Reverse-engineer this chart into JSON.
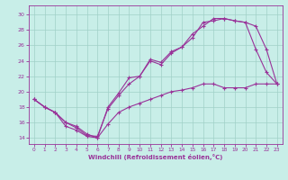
{
  "background_color": "#c8eee8",
  "grid_color": "#a0d0c8",
  "line_color": "#993399",
  "xlabel": "Windchill (Refroidissement éolien,°C)",
  "x_ticks": [
    0,
    1,
    2,
    3,
    4,
    5,
    6,
    7,
    8,
    9,
    10,
    11,
    12,
    13,
    14,
    15,
    16,
    17,
    18,
    19,
    20,
    21,
    22,
    23
  ],
  "y_ticks": [
    14,
    16,
    18,
    20,
    22,
    24,
    26,
    28,
    30
  ],
  "xlim": [
    -0.5,
    23.5
  ],
  "ylim": [
    13.2,
    31.2
  ],
  "line1_x": [
    0,
    1,
    2,
    3,
    4,
    5,
    6,
    7,
    8,
    9,
    10,
    11,
    12,
    13,
    14,
    15,
    16,
    17,
    18,
    19,
    20,
    21,
    22,
    23
  ],
  "line1_y": [
    19.0,
    18.0,
    17.3,
    16.0,
    15.5,
    14.5,
    14.0,
    18.0,
    19.8,
    21.8,
    22.0,
    24.0,
    23.5,
    25.0,
    25.8,
    27.0,
    29.0,
    29.2,
    29.5,
    29.2,
    29.0,
    25.5,
    22.5,
    21.0
  ],
  "line2_x": [
    0,
    1,
    2,
    3,
    4,
    5,
    6,
    7,
    8,
    9,
    10,
    11,
    12,
    13,
    14,
    15,
    16,
    17,
    18,
    19,
    20,
    21,
    22,
    23
  ],
  "line2_y": [
    19.0,
    18.0,
    17.3,
    16.0,
    15.3,
    14.3,
    14.2,
    17.8,
    19.5,
    21.0,
    22.0,
    24.2,
    23.8,
    25.2,
    25.8,
    27.5,
    28.5,
    29.5,
    29.5,
    29.2,
    29.0,
    28.5,
    25.5,
    21.0
  ],
  "line3_x": [
    0,
    1,
    2,
    3,
    4,
    5,
    6,
    7,
    8,
    9,
    10,
    11,
    12,
    13,
    14,
    15,
    16,
    17,
    18,
    19,
    20,
    21,
    22,
    23
  ],
  "line3_y": [
    19.0,
    18.0,
    17.3,
    15.5,
    15.0,
    14.2,
    14.0,
    15.8,
    17.3,
    18.0,
    18.5,
    19.0,
    19.5,
    20.0,
    20.2,
    20.5,
    21.0,
    21.0,
    20.5,
    20.5,
    20.5,
    21.0,
    21.0,
    21.0
  ]
}
